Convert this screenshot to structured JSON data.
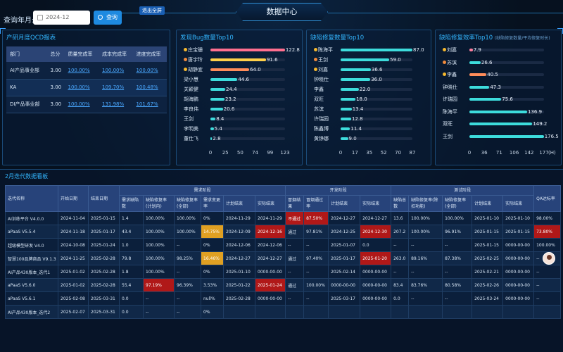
{
  "header": {
    "title": "数据中心",
    "query_label": "查询年月:",
    "date_value": "2024-12",
    "query_button": "查询",
    "fullscreen_button": "退出全屏"
  },
  "qcd": {
    "title": "产研月度QCD报表",
    "headers": [
      "部门",
      "总分",
      "质量完成率",
      "成本完成率",
      "进度完成率"
    ],
    "rows": [
      [
        "AI产品事业部",
        "3.00",
        "100.00%",
        "100.00%",
        "100.00%"
      ],
      [
        "KA",
        "3.00",
        "100.00%",
        "109.70%",
        "100.48%"
      ],
      [
        "DI产品事业部",
        "3.00",
        "100.00%",
        "131.98%",
        "101.67%"
      ]
    ]
  },
  "chart_data": [
    {
      "type": "bar",
      "title": "发现Bug数量Top10",
      "categories": [
        "庄宝珊",
        "唐宇玲",
        "胡静宜",
        "梁小慧",
        "关颖健",
        "胡海鹏",
        "李良伟",
        "王剑",
        "李明美",
        "董仕飞"
      ],
      "values": [
        122.8,
        91.6,
        64.0,
        44.6,
        24.4,
        23.2,
        20.6,
        8.4,
        5.4,
        2.8
      ],
      "xticks": [
        "0",
        "25",
        "50",
        "74",
        "99",
        "123"
      ],
      "xlim": [
        0,
        123
      ],
      "color": "#ff6fa0"
    },
    {
      "type": "bar",
      "title": "缺陷修复数量Top10",
      "categories": [
        "陈海平",
        "王剑",
        "刘嘉",
        "钟晓仕",
        "李鑫",
        "双旺",
        "苏滨",
        "许瑞园",
        "陈鑫博",
        "黄铮娜"
      ],
      "values": [
        87.0,
        59.0,
        36.6,
        36.0,
        22.0,
        18.0,
        13.4,
        12.8,
        11.4,
        9.0
      ],
      "xticks": [
        "0",
        "17",
        "35",
        "52",
        "70",
        "87"
      ],
      "xlim": [
        0,
        87
      ],
      "color": "#3ddcdc"
    },
    {
      "type": "bar",
      "title": "缺陷修复效率Top10",
      "subtitle": "(缺陷修复数量/平均修复时长)",
      "categories": [
        "刘嘉",
        "苏滨",
        "李鑫",
        "钟晓仕",
        "许瑞园",
        "陈海平",
        "双旺",
        "王剑"
      ],
      "values": [
        7.9,
        26.6,
        40.5,
        47.3,
        75.6,
        136.9,
        149.2,
        176.5
      ],
      "xticks": [
        "0",
        "36",
        "71",
        "106",
        "142",
        "177"
      ],
      "xunit": "(H)",
      "xlim": [
        0,
        177
      ],
      "color": "#3ddcdc"
    }
  ],
  "board": {
    "title": "2月迭代数据看板",
    "group_headers": {
      "demand": "需求阶段",
      "dev": "开发阶段",
      "test": "测试阶段"
    },
    "columns": [
      "迭代名称",
      "开始日期",
      "结束日期",
      "需求缺陷数",
      "缺陷修复率(计划内)",
      "缺陷修复率(全部)",
      "需求变更率",
      "计划结束",
      "实际结束",
      "冒烟结果",
      "冒烟通过率",
      "计划结束",
      "实际结束",
      "缺陷总数",
      "缺陷修复率(除扣功能)",
      "缺陷修复率(全部)",
      "计划结束",
      "实际结束",
      "QA达标率"
    ],
    "rows": [
      [
        "AI训练平台 V4.0.0",
        "2024-11-04",
        "2025-01-15",
        "1.4",
        "100.00%",
        "100.00%",
        "0%",
        "2024-11-29",
        "2024-11-29",
        "不通过",
        "87.50%",
        "2024-12-27",
        "2024-12-27",
        "13.6",
        "100.00%",
        "100.00%",
        "2025-01-10",
        "2025-01-10",
        "98.00%"
      ],
      [
        "aPaaS V5.5.4",
        "2024-11-18",
        "2025-01-17",
        "43.4",
        "100.00%",
        "100.00%",
        "14.75%",
        "2024-12-09",
        "2024-12-16",
        "通过",
        "97.81%",
        "2024-12-25",
        "2024-12-30",
        "207.2",
        "100.00%",
        "96.91%",
        "2025-01-15",
        "2025-01-15",
        "73.80%"
      ],
      [
        "超级模型研发 V4.0",
        "2024-10-08",
        "2025-01-24",
        "1.0",
        "100.00%",
        "--",
        "0%",
        "2024-12-06",
        "2024-12-06",
        "--",
        "--",
        "2025-01-07",
        "0.0",
        "--",
        "--",
        "--",
        "2025-01-15",
        "0000-00-00",
        "100.00%"
      ],
      [
        "智慧100品牌商品 V9.1.3",
        "2024-11-25",
        "2025-02-28",
        "79.8",
        "100.00%",
        "98.25%",
        "16.46%",
        "2024-12-27",
        "2024-12-27",
        "通过",
        "97.40%",
        "2025-01-17",
        "2025-01-20",
        "263.0",
        "89.16%",
        "87.38%",
        "2025-02-25",
        "0000-00-00",
        "--"
      ],
      [
        "AI产品430版本_迭代1",
        "2025-01-02",
        "2025-02-28",
        "1.8",
        "100.00%",
        "--",
        "0%",
        "2025-01-10",
        "0000-00-00",
        "--",
        "--",
        "2025-02-14",
        "0000-00-00",
        "--",
        "--",
        "--",
        "2025-02-21",
        "0000-00-00",
        "--"
      ],
      [
        "aPaaS V5.6.0",
        "2025-01-02",
        "2025-02-28",
        "55.4",
        "97.19%",
        "96.39%",
        "3.53%",
        "2025-01-22",
        "2025-01-24",
        "通过",
        "100.00%",
        "0000-00-00",
        "0000-00-00",
        "83.4",
        "83.76%",
        "80.58%",
        "2025-02-26",
        "0000-00-00",
        "--"
      ],
      [
        "aPaaS V5.6.1",
        "2025-02-08",
        "2025-03-31",
        "0.0",
        "--",
        "--",
        "null%",
        "2025-02-28",
        "0000-00-00",
        "--",
        "--",
        "2025-03-17",
        "0000-00-00",
        "0.0",
        "--",
        "--",
        "2025-03-24",
        "0000-00-00",
        "--"
      ],
      [
        "AI产品430版本_迭代2",
        "2025-02-07",
        "2025-03-31",
        "0.0",
        "--",
        "--",
        "0%",
        "",
        "",
        "",
        "",
        "",
        "",
        "",
        "",
        "",
        "",
        "",
        ""
      ]
    ]
  },
  "colors": {
    "accent": "#33b6ff",
    "red": "#b01818",
    "yellow": "#e0a022",
    "pink": "#ff6fa0",
    "orange": "#ffb347",
    "cyan": "#3ddcdc"
  }
}
